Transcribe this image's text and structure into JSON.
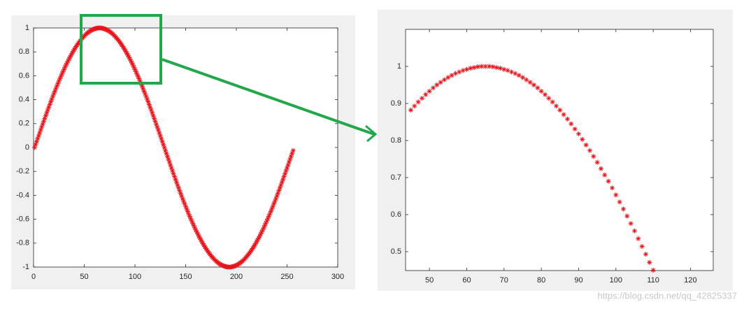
{
  "watermark": "https://blog.csdn.net/qq_42825337",
  "chart_data": [
    {
      "type": "scatter",
      "marker": "*",
      "color": "#e8141b",
      "x": [
        1,
        2,
        3,
        4,
        5,
        6,
        7,
        8,
        9,
        10,
        11,
        12,
        13,
        14,
        15,
        16,
        17,
        18,
        19,
        20,
        21,
        22,
        23,
        24,
        25,
        26,
        27,
        28,
        29,
        30,
        31,
        32,
        33,
        34,
        35,
        36,
        37,
        38,
        39,
        40,
        41,
        42,
        43,
        44,
        45,
        46,
        47,
        48,
        49,
        50,
        51,
        52,
        53,
        54,
        55,
        56,
        57,
        58,
        59,
        60,
        61,
        62,
        63,
        64,
        65,
        66,
        67,
        68,
        69,
        70,
        71,
        72,
        73,
        74,
        75,
        76,
        77,
        78,
        79,
        80,
        81,
        82,
        83,
        84,
        85,
        86,
        87,
        88,
        89,
        90,
        91,
        92,
        93,
        94,
        95,
        96,
        97,
        98,
        99,
        100,
        101,
        102,
        103,
        104,
        105,
        106,
        107,
        108,
        109,
        110,
        111,
        112,
        113,
        114,
        115,
        116,
        117,
        118,
        119,
        120,
        121,
        122,
        123,
        124,
        125,
        126,
        127,
        128,
        129,
        130,
        131,
        132,
        133,
        134,
        135,
        136,
        137,
        138,
        139,
        140,
        141,
        142,
        143,
        144,
        145,
        146,
        147,
        148,
        149,
        150,
        151,
        152,
        153,
        154,
        155,
        156,
        157,
        158,
        159,
        160,
        161,
        162,
        163,
        164,
        165,
        166,
        167,
        168,
        169,
        170,
        171,
        172,
        173,
        174,
        175,
        176,
        177,
        178,
        179,
        180,
        181,
        182,
        183,
        184,
        185,
        186,
        187,
        188,
        189,
        190,
        191,
        192,
        193,
        194,
        195,
        196,
        197,
        198,
        199,
        200,
        201,
        202,
        203,
        204,
        205,
        206,
        207,
        208,
        209,
        210,
        211,
        212,
        213,
        214,
        215,
        216,
        217,
        218,
        219,
        220,
        221,
        222,
        223,
        224,
        225,
        226,
        227,
        228,
        229,
        230,
        231,
        232,
        233,
        234,
        235,
        236,
        237,
        238,
        239,
        240,
        241,
        242,
        243,
        244,
        245,
        246,
        247,
        248,
        249,
        250,
        251,
        252,
        253,
        254,
        255,
        256
      ],
      "values": [
        0,
        0.025,
        0.049,
        0.074,
        0.098,
        0.122,
        0.147,
        0.171,
        0.195,
        0.219,
        0.243,
        0.267,
        0.29,
        0.314,
        0.337,
        0.36,
        0.383,
        0.405,
        0.428,
        0.45,
        0.471,
        0.493,
        0.514,
        0.535,
        0.556,
        0.576,
        0.596,
        0.615,
        0.634,
        0.653,
        0.672,
        0.69,
        0.707,
        0.724,
        0.741,
        0.757,
        0.773,
        0.788,
        0.803,
        0.818,
        0.831,
        0.845,
        0.858,
        0.87,
        0.882,
        0.893,
        0.904,
        0.914,
        0.924,
        0.933,
        0.942,
        0.95,
        0.957,
        0.964,
        0.97,
        0.976,
        0.981,
        0.985,
        0.989,
        0.992,
        0.995,
        0.997,
        0.999,
        1,
        1,
        1,
        0.999,
        0.997,
        0.995,
        0.992,
        0.989,
        0.985,
        0.981,
        0.976,
        0.97,
        0.964,
        0.957,
        0.95,
        0.942,
        0.933,
        0.924,
        0.914,
        0.904,
        0.893,
        0.882,
        0.87,
        0.858,
        0.845,
        0.831,
        0.818,
        0.803,
        0.788,
        0.773,
        0.757,
        0.741,
        0.724,
        0.707,
        0.69,
        0.672,
        0.653,
        0.634,
        0.615,
        0.596,
        0.576,
        0.556,
        0.535,
        0.514,
        0.493,
        0.471,
        0.45,
        0.428,
        0.405,
        0.383,
        0.36,
        0.337,
        0.314,
        0.29,
        0.267,
        0.243,
        0.219,
        0.195,
        0.171,
        0.147,
        0.122,
        0.098,
        0.074,
        0.049,
        0.025,
        0,
        -0.025,
        -0.049,
        -0.074,
        -0.098,
        -0.122,
        -0.147,
        -0.171,
        -0.195,
        -0.219,
        -0.243,
        -0.267,
        -0.29,
        -0.314,
        -0.337,
        -0.36,
        -0.383,
        -0.405,
        -0.428,
        -0.45,
        -0.471,
        -0.493,
        -0.514,
        -0.535,
        -0.556,
        -0.576,
        -0.596,
        -0.615,
        -0.634,
        -0.653,
        -0.672,
        -0.69,
        -0.707,
        -0.724,
        -0.741,
        -0.757,
        -0.773,
        -0.788,
        -0.803,
        -0.818,
        -0.831,
        -0.845,
        -0.858,
        -0.87,
        -0.882,
        -0.893,
        -0.904,
        -0.914,
        -0.924,
        -0.933,
        -0.942,
        -0.95,
        -0.957,
        -0.964,
        -0.97,
        -0.976,
        -0.981,
        -0.985,
        -0.989,
        -0.992,
        -0.995,
        -0.997,
        -0.999,
        -1,
        -1,
        -1,
        -0.999,
        -0.997,
        -0.995,
        -0.992,
        -0.989,
        -0.985,
        -0.981,
        -0.976,
        -0.97,
        -0.964,
        -0.957,
        -0.95,
        -0.942,
        -0.933,
        -0.924,
        -0.914,
        -0.904,
        -0.893,
        -0.882,
        -0.87,
        -0.858,
        -0.845,
        -0.831,
        -0.818,
        -0.803,
        -0.788,
        -0.773,
        -0.757,
        -0.741,
        -0.724,
        -0.707,
        -0.69,
        -0.672,
        -0.653,
        -0.634,
        -0.615,
        -0.596,
        -0.576,
        -0.556,
        -0.535,
        -0.514,
        -0.493,
        -0.471,
        -0.45,
        -0.428,
        -0.405,
        -0.383,
        -0.36,
        -0.337,
        -0.314,
        -0.29,
        -0.267,
        -0.243,
        -0.219,
        -0.195,
        -0.171,
        -0.147,
        -0.122,
        -0.098,
        -0.074,
        -0.049,
        -0.025
      ],
      "xlim": [
        0,
        300
      ],
      "ylim": [
        -1,
        1
      ],
      "xticks": [
        0,
        50,
        100,
        150,
        200,
        250,
        300
      ],
      "yticks": [
        -1,
        -0.8,
        -0.6,
        -0.4,
        -0.2,
        0,
        0.2,
        0.4,
        0.6,
        0.8,
        1
      ]
    },
    {
      "type": "scatter",
      "marker": "*",
      "color": "#e8141b",
      "x": [
        45,
        46,
        47,
        48,
        49,
        50,
        51,
        52,
        53,
        54,
        55,
        56,
        57,
        58,
        59,
        60,
        61,
        62,
        63,
        64,
        65,
        66,
        67,
        68,
        69,
        70,
        71,
        72,
        73,
        74,
        75,
        76,
        77,
        78,
        79,
        80,
        81,
        82,
        83,
        84,
        85,
        86,
        87,
        88,
        89,
        90,
        91,
        92,
        93,
        94,
        95,
        96,
        97,
        98,
        99,
        100,
        101,
        102,
        103,
        104,
        105,
        106,
        107,
        108,
        109,
        110
      ],
      "values": [
        0.882,
        0.893,
        0.904,
        0.914,
        0.924,
        0.933,
        0.942,
        0.95,
        0.957,
        0.964,
        0.97,
        0.976,
        0.981,
        0.985,
        0.989,
        0.992,
        0.995,
        0.997,
        0.999,
        1,
        1,
        1,
        0.999,
        0.997,
        0.995,
        0.992,
        0.989,
        0.985,
        0.981,
        0.976,
        0.97,
        0.964,
        0.957,
        0.95,
        0.942,
        0.933,
        0.924,
        0.914,
        0.904,
        0.893,
        0.882,
        0.87,
        0.858,
        0.845,
        0.831,
        0.818,
        0.803,
        0.788,
        0.773,
        0.757,
        0.741,
        0.724,
        0.707,
        0.69,
        0.672,
        0.653,
        0.634,
        0.615,
        0.596,
        0.576,
        0.556,
        0.535,
        0.514,
        0.493,
        0.471,
        0.45
      ],
      "xlim": [
        43.6,
        126.1
      ],
      "ylim": [
        0.449,
        1.1
      ],
      "xticks": [
        50,
        60,
        70,
        80,
        90,
        100,
        110,
        120
      ],
      "yticks": [
        0.5,
        0.6,
        0.7,
        0.8,
        0.9,
        1
      ]
    }
  ]
}
